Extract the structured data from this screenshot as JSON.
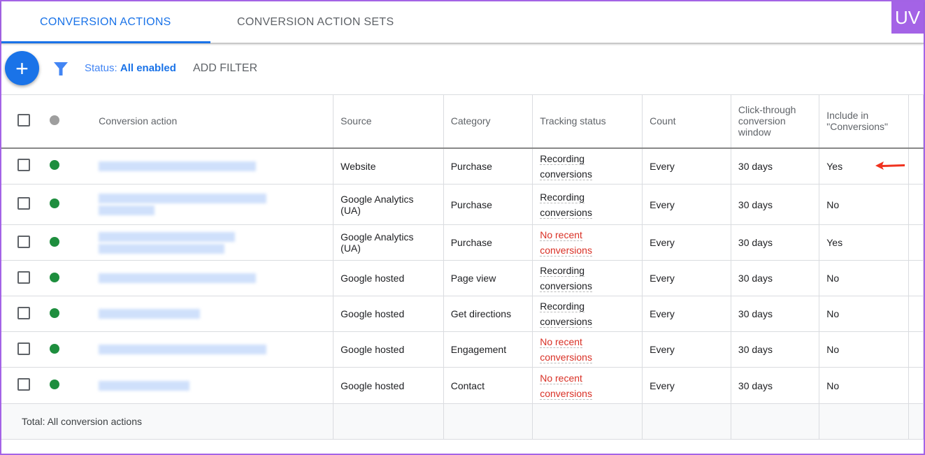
{
  "tabs": [
    {
      "label": "CONVERSION ACTIONS",
      "active": true
    },
    {
      "label": "CONVERSION ACTION SETS",
      "active": false
    }
  ],
  "logo": "UV",
  "toolbar": {
    "add_icon": "plus-icon",
    "status_label": "Status:",
    "status_value": "All enabled",
    "add_filter": "ADD FILTER"
  },
  "colors": {
    "accent": "#1a73e8",
    "enabled": "#1e8e3e",
    "warning": "#d93025",
    "frame": "#a463e6"
  },
  "table": {
    "headers": [
      "Conversion action",
      "Source",
      "Category",
      "Tracking status",
      "Count",
      "Click-through conversion window",
      "Include in \"Conversions\""
    ],
    "rows": [
      {
        "source": "Website",
        "category": "Purchase",
        "tracking": "Recording conversions",
        "tracking_warn": false,
        "count": "Every",
        "window": "30 days",
        "include": "Yes"
      },
      {
        "source": "Google Analytics (UA)",
        "category": "Purchase",
        "tracking": "Recording conversions",
        "tracking_warn": false,
        "count": "Every",
        "window": "30 days",
        "include": "No"
      },
      {
        "source": "Google Analytics (UA)",
        "category": "Purchase",
        "tracking": "No recent conversions",
        "tracking_warn": true,
        "count": "Every",
        "window": "30 days",
        "include": "Yes"
      },
      {
        "source": "Google hosted",
        "category": "Page view",
        "tracking": "Recording conversions",
        "tracking_warn": false,
        "count": "Every",
        "window": "30 days",
        "include": "No"
      },
      {
        "source": "Google hosted",
        "category": "Get directions",
        "tracking": "Recording conversions",
        "tracking_warn": false,
        "count": "Every",
        "window": "30 days",
        "include": "No"
      },
      {
        "source": "Google hosted",
        "category": "Engagement",
        "tracking": "No recent conversions",
        "tracking_warn": true,
        "count": "Every",
        "window": "30 days",
        "include": "No"
      },
      {
        "source": "Google hosted",
        "category": "Contact",
        "tracking": "No recent conversions",
        "tracking_warn": true,
        "count": "Every",
        "window": "30 days",
        "include": "No"
      }
    ],
    "total_label": "Total: All conversion actions"
  }
}
